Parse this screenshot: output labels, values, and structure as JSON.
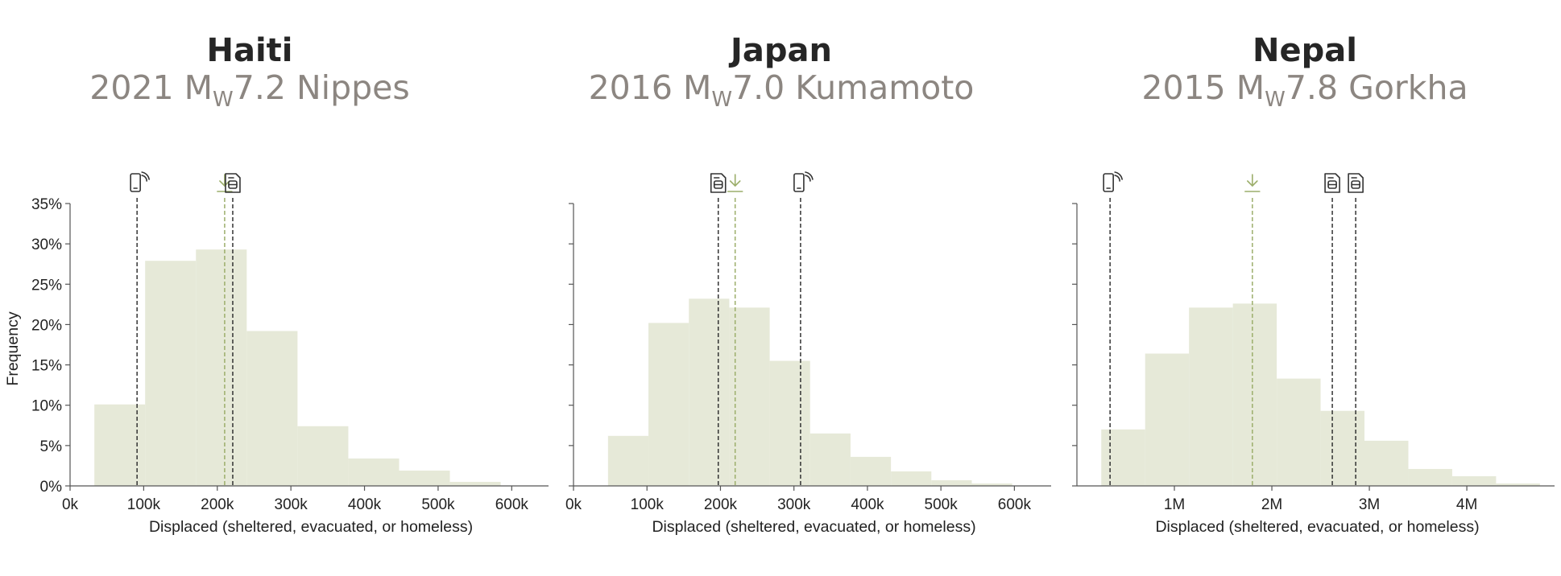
{
  "ylabel": "Frequency",
  "colors": {
    "bar": "#e6e9d8",
    "median_line": "#9cae6b",
    "ref_line": "#333333",
    "axis": "#555555",
    "text": "#222222"
  },
  "panels": [
    {
      "title": "Haiti",
      "sub_pre": "2021 M",
      "sub_sub": "W",
      "sub_post": "7.2 Nippes"
    },
    {
      "title": "Japan",
      "sub_pre": "2016 M",
      "sub_sub": "W",
      "sub_post": "7.0 Kumamoto"
    },
    {
      "title": "Nepal",
      "sub_pre": "2015 M",
      "sub_sub": "W",
      "sub_post": "7.8 Gorkha"
    }
  ],
  "chart_data": [
    {
      "type": "bar",
      "title": "Haiti",
      "xlabel": "Displaced (sheltered, evacuated, or homeless)",
      "ylabel": "Frequency",
      "xlim": [
        0,
        650000
      ],
      "ylim": [
        0,
        0.35
      ],
      "xticks": [
        0,
        100000,
        200000,
        300000,
        400000,
        500000,
        600000
      ],
      "xticklabels": [
        "0k",
        "100k",
        "200k",
        "300k",
        "400k",
        "500k",
        "600k"
      ],
      "yticks": [
        0,
        0.05,
        0.1,
        0.15,
        0.2,
        0.25,
        0.3,
        0.35
      ],
      "yticklabels": [
        "0%",
        "5%",
        "10%",
        "15%",
        "20%",
        "25%",
        "30%",
        "35%"
      ],
      "show_ytick_labels": true,
      "bins": [
        33000,
        102000,
        171000,
        240000,
        309000,
        378000,
        447000,
        516000,
        585000
      ],
      "frequencies": [
        0.101,
        0.279,
        0.293,
        0.192,
        0.074,
        0.034,
        0.019,
        0.005
      ],
      "reference_lines": [
        {
          "x": 91000,
          "icon": "phone",
          "style": "ref"
        },
        {
          "x": 210000,
          "icon": "download",
          "style": "median"
        },
        {
          "x": 221000,
          "icon": "document",
          "style": "ref"
        }
      ]
    },
    {
      "type": "bar",
      "title": "Japan",
      "xlabel": "Displaced (sheltered, evacuated, or homeless)",
      "ylabel": "",
      "xlim": [
        0,
        650000
      ],
      "ylim": [
        0,
        0.35
      ],
      "xticks": [
        0,
        100000,
        200000,
        300000,
        400000,
        500000,
        600000
      ],
      "xticklabels": [
        "0k",
        "100k",
        "200k",
        "300k",
        "400k",
        "500k",
        "600k"
      ],
      "yticks": [
        0,
        0.05,
        0.1,
        0.15,
        0.2,
        0.25,
        0.3,
        0.35
      ],
      "yticklabels": [],
      "show_ytick_labels": false,
      "bins": [
        47000,
        102000,
        157000,
        212000,
        267000,
        322000,
        377000,
        432000,
        487000,
        542000,
        597000
      ],
      "frequencies": [
        0.062,
        0.202,
        0.232,
        0.221,
        0.155,
        0.065,
        0.036,
        0.018,
        0.007,
        0.003
      ],
      "reference_lines": [
        {
          "x": 197000,
          "icon": "document",
          "style": "ref"
        },
        {
          "x": 220000,
          "icon": "download",
          "style": "median"
        },
        {
          "x": 309000,
          "icon": "phone",
          "style": "ref"
        }
      ]
    },
    {
      "type": "bar",
      "title": "Nepal",
      "xlabel": "Displaced (sheltered, evacuated, or homeless)",
      "ylabel": "",
      "xlim": [
        0,
        4900000
      ],
      "ylim": [
        0,
        0.35
      ],
      "xticks": [
        1000000,
        2000000,
        3000000,
        4000000
      ],
      "xticklabels": [
        "1M",
        "2M",
        "3M",
        "4M"
      ],
      "yticks": [
        0,
        0.05,
        0.1,
        0.15,
        0.2,
        0.25,
        0.3,
        0.35
      ],
      "yticklabels": [],
      "show_ytick_labels": false,
      "bins": [
        250000,
        700000,
        1150000,
        1600000,
        2050000,
        2500000,
        2950000,
        3400000,
        3850000,
        4300000,
        4750000
      ],
      "frequencies": [
        0.07,
        0.164,
        0.221,
        0.226,
        0.133,
        0.093,
        0.056,
        0.021,
        0.012,
        0.003
      ],
      "reference_lines": [
        {
          "x": 340000,
          "icon": "phone",
          "style": "ref"
        },
        {
          "x": 1800000,
          "icon": "download",
          "style": "median"
        },
        {
          "x": 2620000,
          "icon": "document",
          "style": "ref"
        },
        {
          "x": 2860000,
          "icon": "document",
          "style": "ref"
        }
      ]
    }
  ]
}
